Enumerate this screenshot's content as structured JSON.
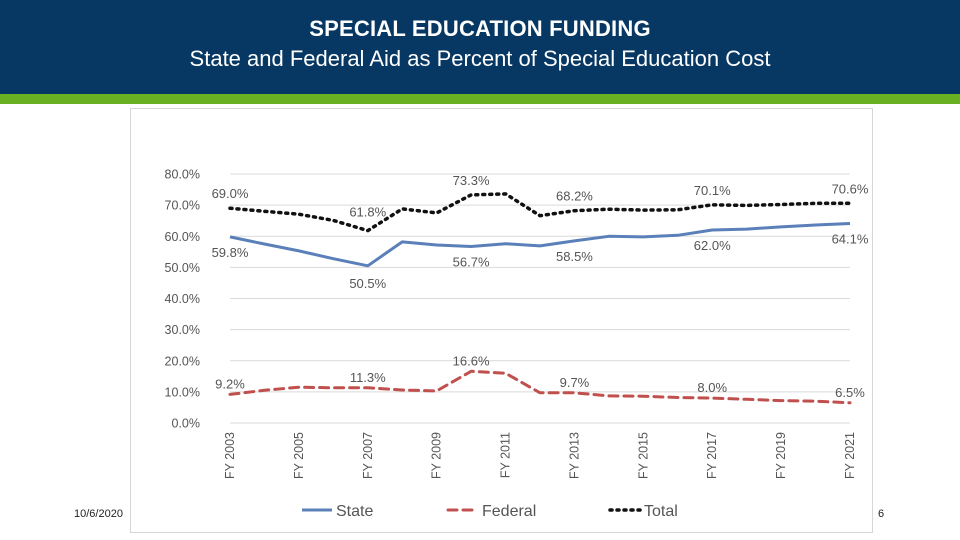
{
  "slide": {
    "title": "SPECIAL EDUCATION FUNDING",
    "subtitle": "State and Federal Aid as Percent of Special Education Cost",
    "date": "10/6/2020",
    "page_number": "6"
  },
  "colors": {
    "header_bg": "#073763",
    "accent_bar": "#6ab023",
    "state": "#5b80b9",
    "federal": "#c0504d",
    "total": "#111111"
  },
  "chart_data": {
    "type": "line",
    "title": "",
    "xlabel": "",
    "ylabel": "",
    "ylim": [
      0,
      80
    ],
    "y_ticks": [
      "0.0%",
      "10.0%",
      "20.0%",
      "30.0%",
      "40.0%",
      "50.0%",
      "60.0%",
      "70.0%",
      "80.0%"
    ],
    "grid": true,
    "legend_position": "bottom",
    "x": [
      "FY 2003",
      "FY 2004",
      "FY 2005",
      "FY 2006",
      "FY 2007",
      "FY 2008",
      "FY 2009",
      "FY 2010",
      "FY 2011",
      "FY 2012",
      "FY 2013",
      "FY 2014",
      "FY 2015",
      "FY 2016",
      "FY 2017",
      "FY 2018",
      "FY 2019",
      "FY 2020",
      "FY 2021"
    ],
    "x_tick_labels": [
      "FY 2003",
      "FY 2005",
      "FY 2007",
      "FY 2009",
      "FY 2011",
      "FY 2013",
      "FY 2015",
      "FY 2017",
      "FY 2019",
      "FY 2021"
    ],
    "series": [
      {
        "name": "State",
        "style": "solid",
        "values": [
          59.8,
          57.5,
          55.3,
          52.8,
          50.5,
          58.2,
          57.2,
          56.7,
          57.6,
          56.9,
          58.5,
          60.0,
          59.8,
          60.3,
          62.0,
          62.3,
          63.0,
          63.6,
          64.1
        ]
      },
      {
        "name": "Federal",
        "style": "dashed",
        "values": [
          9.2,
          10.5,
          11.5,
          11.3,
          11.3,
          10.6,
          10.3,
          16.6,
          16.0,
          9.7,
          9.7,
          8.7,
          8.6,
          8.2,
          8.0,
          7.6,
          7.2,
          7.0,
          6.5
        ]
      },
      {
        "name": "Total",
        "style": "dotted",
        "values": [
          69.0,
          68.0,
          67.1,
          65.1,
          61.8,
          68.8,
          67.5,
          73.3,
          73.6,
          66.6,
          68.2,
          68.7,
          68.4,
          68.5,
          70.1,
          69.9,
          70.2,
          70.6,
          70.6
        ]
      }
    ],
    "annotations": [
      {
        "series": "Total",
        "x": "FY 2003",
        "label": "69.0%"
      },
      {
        "series": "Total",
        "x": "FY 2007",
        "label": "61.8%"
      },
      {
        "series": "Total",
        "x": "FY 2010",
        "label": "73.3%"
      },
      {
        "series": "Total",
        "x": "FY 2013",
        "label": "68.2%"
      },
      {
        "series": "Total",
        "x": "FY 2017",
        "label": "70.1%"
      },
      {
        "series": "Total",
        "x": "FY 2021",
        "label": "70.6%"
      },
      {
        "series": "State",
        "x": "FY 2003",
        "label": "59.8%"
      },
      {
        "series": "State",
        "x": "FY 2007",
        "label": "50.5%"
      },
      {
        "series": "State",
        "x": "FY 2010",
        "label": "56.7%"
      },
      {
        "series": "State",
        "x": "FY 2013",
        "label": "58.5%"
      },
      {
        "series": "State",
        "x": "FY 2017",
        "label": "62.0%"
      },
      {
        "series": "State",
        "x": "FY 2021",
        "label": "64.1%"
      },
      {
        "series": "Federal",
        "x": "FY 2003",
        "label": "9.2%"
      },
      {
        "series": "Federal",
        "x": "FY 2007",
        "label": "11.3%"
      },
      {
        "series": "Federal",
        "x": "FY 2010",
        "label": "16.6%"
      },
      {
        "series": "Federal",
        "x": "FY 2013",
        "label": "9.7%"
      },
      {
        "series": "Federal",
        "x": "FY 2017",
        "label": "8.0%"
      },
      {
        "series": "Federal",
        "x": "FY 2021",
        "label": "6.5%"
      }
    ]
  }
}
